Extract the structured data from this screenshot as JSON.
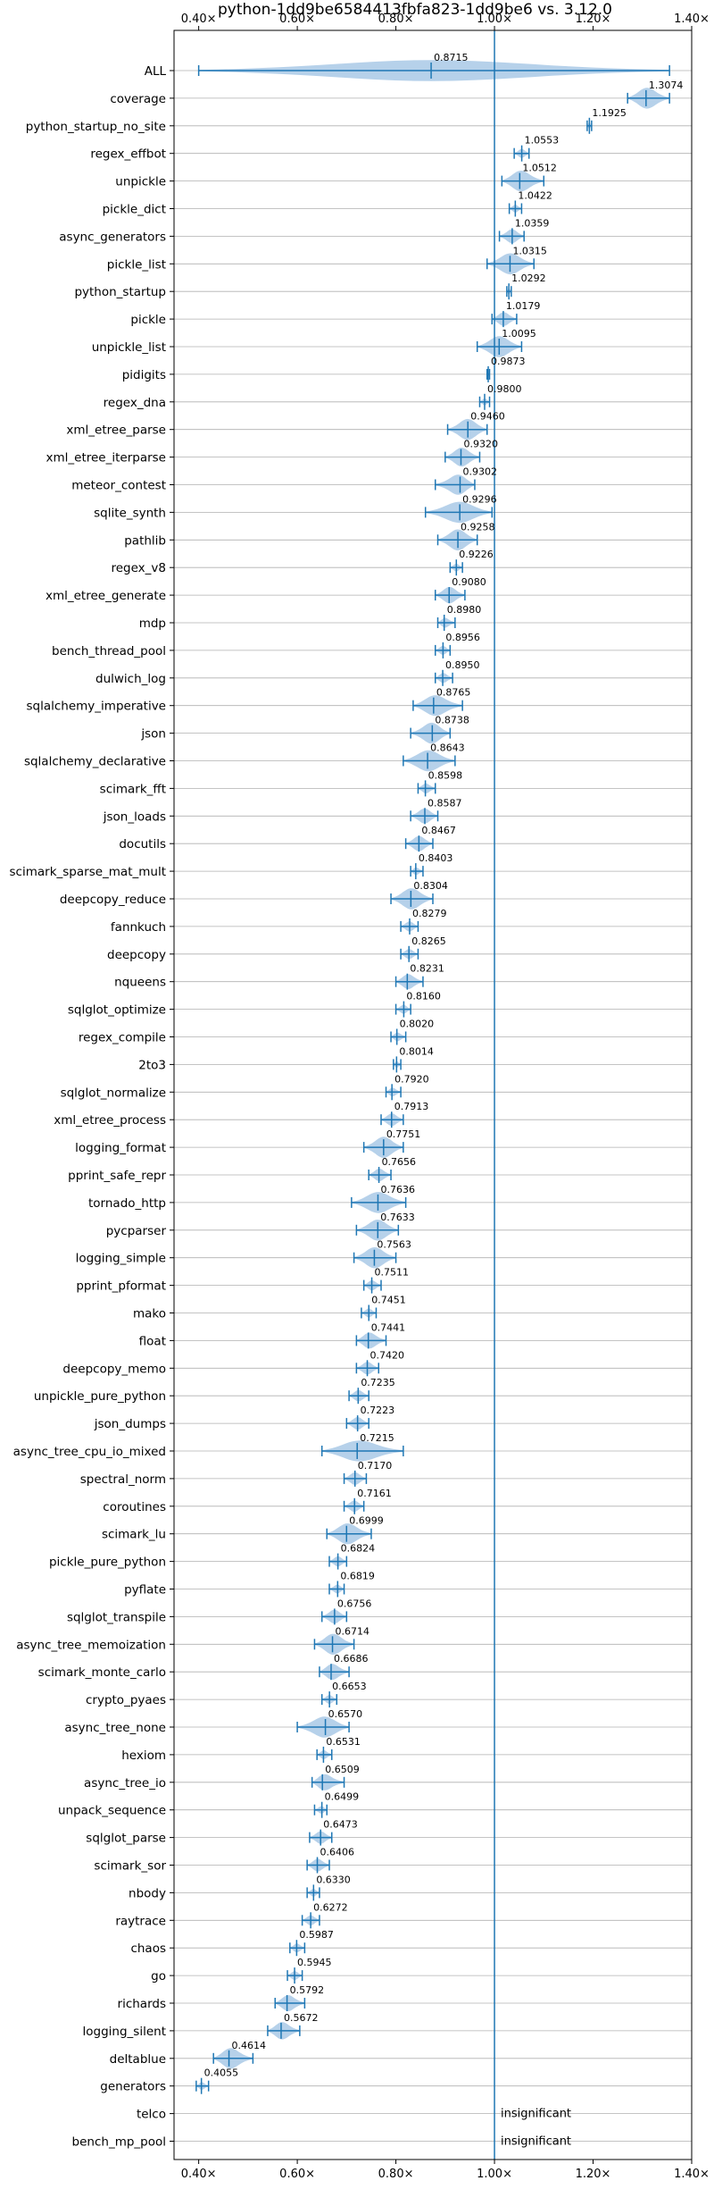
{
  "chart_data": {
    "type": "violin",
    "title": "python-1dd9be6584413fbfa823-1dd9be6 vs. 3.12.0",
    "xlim": [
      0.35,
      1.4
    ],
    "x_ticks": [
      0.4,
      0.6,
      0.8,
      1.0,
      1.2,
      1.4
    ],
    "x_tick_labels": [
      "0.40×",
      "0.60×",
      "0.80×",
      "1.00×",
      "1.20×",
      "1.40×"
    ],
    "reference_line": 1.0,
    "insignificant_label": "insignificant",
    "accent_color": "#1f77b4",
    "violin_color": "#a9c9e6",
    "grid": "horizontal",
    "categories": [
      {
        "name": "ALL",
        "value": 0.8715,
        "label": "0.8715",
        "min": 0.4,
        "max": 1.355
      },
      {
        "name": "coverage",
        "value": 1.3074,
        "label": "1.3074",
        "min": 1.27,
        "max": 1.355
      },
      {
        "name": "python_startup_no_site",
        "value": 1.1925,
        "label": "1.1925",
        "min": 1.188,
        "max": 1.197
      },
      {
        "name": "regex_effbot",
        "value": 1.0553,
        "label": "1.0553",
        "min": 1.04,
        "max": 1.07
      },
      {
        "name": "unpickle",
        "value": 1.0512,
        "label": "1.0512",
        "min": 1.015,
        "max": 1.1
      },
      {
        "name": "pickle_dict",
        "value": 1.0422,
        "label": "1.0422",
        "min": 1.03,
        "max": 1.055
      },
      {
        "name": "async_generators",
        "value": 1.0359,
        "label": "1.0359",
        "min": 1.01,
        "max": 1.06
      },
      {
        "name": "pickle_list",
        "value": 1.0315,
        "label": "1.0315",
        "min": 0.985,
        "max": 1.08
      },
      {
        "name": "python_startup",
        "value": 1.0292,
        "label": "1.0292",
        "min": 1.025,
        "max": 1.034
      },
      {
        "name": "pickle",
        "value": 1.0179,
        "label": "1.0179",
        "min": 0.995,
        "max": 1.045
      },
      {
        "name": "unpickle_list",
        "value": 1.0095,
        "label": "1.0095",
        "min": 0.965,
        "max": 1.055
      },
      {
        "name": "pidigits",
        "value": 0.9873,
        "label": "0.9873",
        "min": 0.985,
        "max": 0.99
      },
      {
        "name": "regex_dna",
        "value": 0.98,
        "label": "0.9800",
        "min": 0.97,
        "max": 0.99
      },
      {
        "name": "xml_etree_parse",
        "value": 0.946,
        "label": "0.9460",
        "min": 0.905,
        "max": 0.985
      },
      {
        "name": "xml_etree_iterparse",
        "value": 0.932,
        "label": "0.9320",
        "min": 0.9,
        "max": 0.97
      },
      {
        "name": "meteor_contest",
        "value": 0.9302,
        "label": "0.9302",
        "min": 0.88,
        "max": 0.96
      },
      {
        "name": "sqlite_synth",
        "value": 0.9296,
        "label": "0.9296",
        "min": 0.86,
        "max": 0.995
      },
      {
        "name": "pathlib",
        "value": 0.9258,
        "label": "0.9258",
        "min": 0.885,
        "max": 0.965
      },
      {
        "name": "regex_v8",
        "value": 0.9226,
        "label": "0.9226",
        "min": 0.91,
        "max": 0.935
      },
      {
        "name": "xml_etree_generate",
        "value": 0.908,
        "label": "0.9080",
        "min": 0.88,
        "max": 0.94
      },
      {
        "name": "mdp",
        "value": 0.898,
        "label": "0.8980",
        "min": 0.885,
        "max": 0.92
      },
      {
        "name": "bench_thread_pool",
        "value": 0.8956,
        "label": "0.8956",
        "min": 0.88,
        "max": 0.91
      },
      {
        "name": "dulwich_log",
        "value": 0.895,
        "label": "0.8950",
        "min": 0.88,
        "max": 0.915
      },
      {
        "name": "sqlalchemy_imperative",
        "value": 0.8765,
        "label": "0.8765",
        "min": 0.835,
        "max": 0.935
      },
      {
        "name": "json",
        "value": 0.8738,
        "label": "0.8738",
        "min": 0.83,
        "max": 0.91
      },
      {
        "name": "sqlalchemy_declarative",
        "value": 0.8643,
        "label": "0.8643",
        "min": 0.815,
        "max": 0.92
      },
      {
        "name": "scimark_fft",
        "value": 0.8598,
        "label": "0.8598",
        "min": 0.845,
        "max": 0.88
      },
      {
        "name": "json_loads",
        "value": 0.8587,
        "label": "0.8587",
        "min": 0.83,
        "max": 0.885
      },
      {
        "name": "docutils",
        "value": 0.8467,
        "label": "0.8467",
        "min": 0.82,
        "max": 0.875
      },
      {
        "name": "scimark_sparse_mat_mult",
        "value": 0.8403,
        "label": "0.8403",
        "min": 0.83,
        "max": 0.855
      },
      {
        "name": "deepcopy_reduce",
        "value": 0.8304,
        "label": "0.8304",
        "min": 0.79,
        "max": 0.875
      },
      {
        "name": "fannkuch",
        "value": 0.8279,
        "label": "0.8279",
        "min": 0.81,
        "max": 0.845
      },
      {
        "name": "deepcopy",
        "value": 0.8265,
        "label": "0.8265",
        "min": 0.81,
        "max": 0.845
      },
      {
        "name": "nqueens",
        "value": 0.8231,
        "label": "0.8231",
        "min": 0.8,
        "max": 0.855
      },
      {
        "name": "sqlglot_optimize",
        "value": 0.816,
        "label": "0.8160",
        "min": 0.8,
        "max": 0.83
      },
      {
        "name": "regex_compile",
        "value": 0.802,
        "label": "0.8020",
        "min": 0.79,
        "max": 0.82
      },
      {
        "name": "2to3",
        "value": 0.8014,
        "label": "0.8014",
        "min": 0.795,
        "max": 0.81
      },
      {
        "name": "sqlglot_normalize",
        "value": 0.792,
        "label": "0.7920",
        "min": 0.78,
        "max": 0.81
      },
      {
        "name": "xml_etree_process",
        "value": 0.7913,
        "label": "0.7913",
        "min": 0.77,
        "max": 0.815
      },
      {
        "name": "logging_format",
        "value": 0.7751,
        "label": "0.7751",
        "min": 0.735,
        "max": 0.815
      },
      {
        "name": "pprint_safe_repr",
        "value": 0.7656,
        "label": "0.7656",
        "min": 0.745,
        "max": 0.79
      },
      {
        "name": "tornado_http",
        "value": 0.7636,
        "label": "0.7636",
        "min": 0.71,
        "max": 0.82
      },
      {
        "name": "pycparser",
        "value": 0.7633,
        "label": "0.7633",
        "min": 0.72,
        "max": 0.805
      },
      {
        "name": "logging_simple",
        "value": 0.7563,
        "label": "0.7563",
        "min": 0.715,
        "max": 0.8
      },
      {
        "name": "pprint_pformat",
        "value": 0.7511,
        "label": "0.7511",
        "min": 0.735,
        "max": 0.77
      },
      {
        "name": "mako",
        "value": 0.7451,
        "label": "0.7451",
        "min": 0.73,
        "max": 0.76
      },
      {
        "name": "float",
        "value": 0.7441,
        "label": "0.7441",
        "min": 0.72,
        "max": 0.78
      },
      {
        "name": "deepcopy_memo",
        "value": 0.742,
        "label": "0.7420",
        "min": 0.72,
        "max": 0.765
      },
      {
        "name": "unpickle_pure_python",
        "value": 0.7235,
        "label": "0.7235",
        "min": 0.705,
        "max": 0.745
      },
      {
        "name": "json_dumps",
        "value": 0.7223,
        "label": "0.7223",
        "min": 0.7,
        "max": 0.745
      },
      {
        "name": "async_tree_cpu_io_mixed",
        "value": 0.7215,
        "label": "0.7215",
        "min": 0.65,
        "max": 0.815
      },
      {
        "name": "spectral_norm",
        "value": 0.717,
        "label": "0.7170",
        "min": 0.695,
        "max": 0.74
      },
      {
        "name": "coroutines",
        "value": 0.7161,
        "label": "0.7161",
        "min": 0.695,
        "max": 0.735
      },
      {
        "name": "scimark_lu",
        "value": 0.6999,
        "label": "0.6999",
        "min": 0.66,
        "max": 0.75
      },
      {
        "name": "pickle_pure_python",
        "value": 0.6824,
        "label": "0.6824",
        "min": 0.665,
        "max": 0.7
      },
      {
        "name": "pyflate",
        "value": 0.6819,
        "label": "0.6819",
        "min": 0.665,
        "max": 0.695
      },
      {
        "name": "sqlglot_transpile",
        "value": 0.6756,
        "label": "0.6756",
        "min": 0.65,
        "max": 0.7
      },
      {
        "name": "async_tree_memoization",
        "value": 0.6714,
        "label": "0.6714",
        "min": 0.635,
        "max": 0.715
      },
      {
        "name": "scimark_monte_carlo",
        "value": 0.6686,
        "label": "0.6686",
        "min": 0.645,
        "max": 0.705
      },
      {
        "name": "crypto_pyaes",
        "value": 0.6653,
        "label": "0.6653",
        "min": 0.65,
        "max": 0.68
      },
      {
        "name": "async_tree_none",
        "value": 0.657,
        "label": "0.6570",
        "min": 0.6,
        "max": 0.705
      },
      {
        "name": "hexiom",
        "value": 0.6531,
        "label": "0.6531",
        "min": 0.64,
        "max": 0.67
      },
      {
        "name": "async_tree_io",
        "value": 0.6509,
        "label": "0.6509",
        "min": 0.63,
        "max": 0.695
      },
      {
        "name": "unpack_sequence",
        "value": 0.6499,
        "label": "0.6499",
        "min": 0.635,
        "max": 0.66
      },
      {
        "name": "sqlglot_parse",
        "value": 0.6473,
        "label": "0.6473",
        "min": 0.625,
        "max": 0.67
      },
      {
        "name": "scimark_sor",
        "value": 0.6406,
        "label": "0.6406",
        "min": 0.62,
        "max": 0.665
      },
      {
        "name": "nbody",
        "value": 0.633,
        "label": "0.6330",
        "min": 0.62,
        "max": 0.645
      },
      {
        "name": "raytrace",
        "value": 0.6272,
        "label": "0.6272",
        "min": 0.61,
        "max": 0.645
      },
      {
        "name": "chaos",
        "value": 0.5987,
        "label": "0.5987",
        "min": 0.585,
        "max": 0.615
      },
      {
        "name": "go",
        "value": 0.5945,
        "label": "0.5945",
        "min": 0.58,
        "max": 0.61
      },
      {
        "name": "richards",
        "value": 0.5792,
        "label": "0.5792",
        "min": 0.555,
        "max": 0.615
      },
      {
        "name": "logging_silent",
        "value": 0.5672,
        "label": "0.5672",
        "min": 0.54,
        "max": 0.605
      },
      {
        "name": "deltablue",
        "value": 0.4614,
        "label": "0.4614",
        "min": 0.43,
        "max": 0.51
      },
      {
        "name": "generators",
        "value": 0.4055,
        "label": "0.4055",
        "min": 0.395,
        "max": 0.42
      },
      {
        "name": "telco",
        "value": null,
        "label": "",
        "min": null,
        "max": null
      },
      {
        "name": "bench_mp_pool",
        "value": null,
        "label": "",
        "min": null,
        "max": null
      }
    ]
  }
}
